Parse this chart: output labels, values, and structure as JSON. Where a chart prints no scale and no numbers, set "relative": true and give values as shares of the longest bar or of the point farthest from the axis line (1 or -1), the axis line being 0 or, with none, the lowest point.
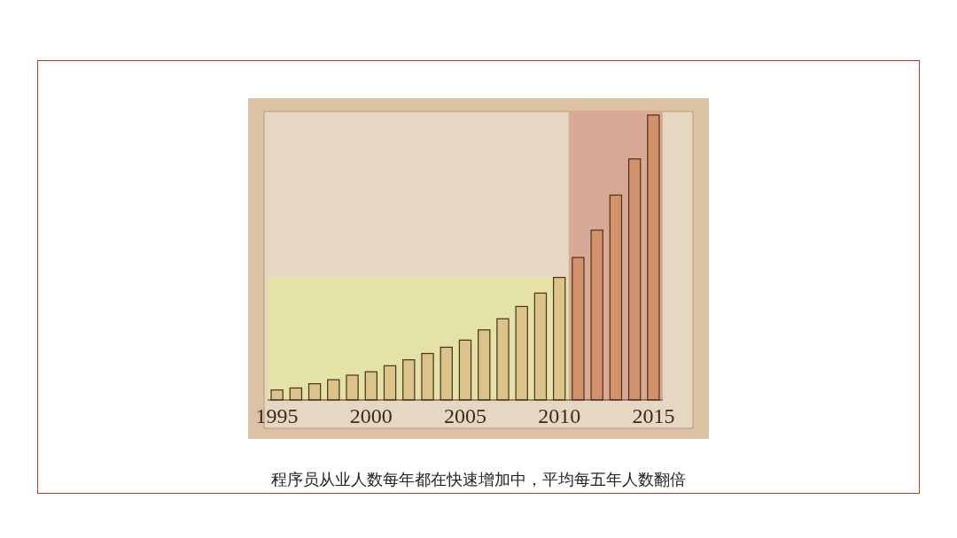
{
  "chart_data": {
    "type": "bar",
    "relative": true,
    "x": [
      1995,
      1996,
      1997,
      1998,
      1999,
      2000,
      2001,
      2002,
      2003,
      2004,
      2005,
      2006,
      2007,
      2008,
      2009,
      2010,
      2011,
      2012,
      2013,
      2014,
      2015
    ],
    "values": [
      0.035,
      0.042,
      0.057,
      0.071,
      0.087,
      0.099,
      0.12,
      0.141,
      0.163,
      0.185,
      0.21,
      0.246,
      0.285,
      0.328,
      0.375,
      0.43,
      0.5,
      0.596,
      0.719,
      0.846,
      1
    ],
    "colors": [
      "#dcc38a",
      "#dcc38a",
      "#dcc38a",
      "#dcc38a",
      "#dcc38a",
      "#dcc38a",
      "#dcc38a",
      "#dcc38a",
      "#dcc38a",
      "#dcc38a",
      "#dcc38a",
      "#dcc38a",
      "#dcc38a",
      "#dcc38a",
      "#dcc38a",
      "#dcc38a",
      "#d4926a",
      "#d4926a",
      "#d4926a",
      "#d4926a",
      "#d4926a"
    ],
    "xlim": [
      1994.5,
      2015.5
    ],
    "xticks": [
      1995,
      2000,
      2005,
      2010,
      2015
    ],
    "bands": [
      {
        "axis": "x",
        "from": 1994.5,
        "to": 2010.5,
        "color": "#e4e2a6"
      },
      {
        "axis": "x",
        "from": 2010.5,
        "to": 2015.5,
        "color": "#d8aa96"
      }
    ],
    "annotations": [
      "程序员从业人数每年都在快速增加中，平均每五年人数翻倍"
    ]
  }
}
